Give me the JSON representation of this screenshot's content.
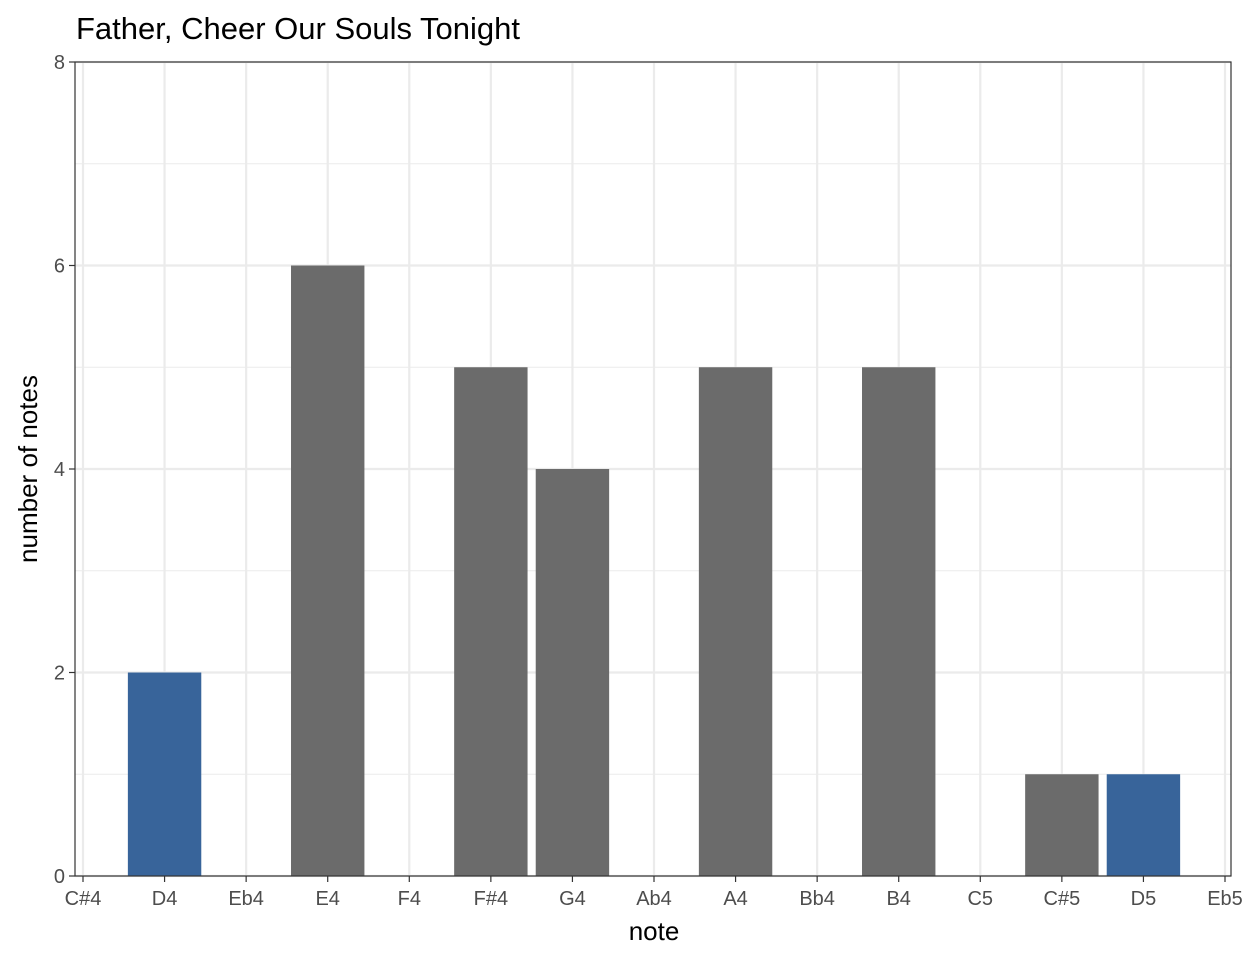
{
  "chart_data": {
    "type": "bar",
    "title": "Father, Cheer Our Souls Tonight",
    "xlabel": "note",
    "ylabel": "number of notes",
    "categories": [
      "C#4",
      "D4",
      "Eb4",
      "E4",
      "F4",
      "F#4",
      "G4",
      "Ab4",
      "A4",
      "Bb4",
      "B4",
      "C5",
      "C#5",
      "D5",
      "Eb5"
    ],
    "values": [
      0,
      2,
      0,
      6,
      0,
      5,
      4,
      0,
      5,
      0,
      5,
      0,
      1,
      1,
      0
    ],
    "highlighted": [
      false,
      true,
      false,
      false,
      false,
      false,
      false,
      false,
      false,
      false,
      false,
      false,
      false,
      true,
      false
    ],
    "ylim": [
      0,
      8
    ],
    "yticks": [
      0,
      2,
      4,
      6,
      8
    ],
    "grid": true,
    "legend": "none",
    "colors": {
      "bar": "#6b6b6b",
      "highlight": "#38649a",
      "grid": "#ebebeb",
      "panel_border": "#333333"
    }
  }
}
